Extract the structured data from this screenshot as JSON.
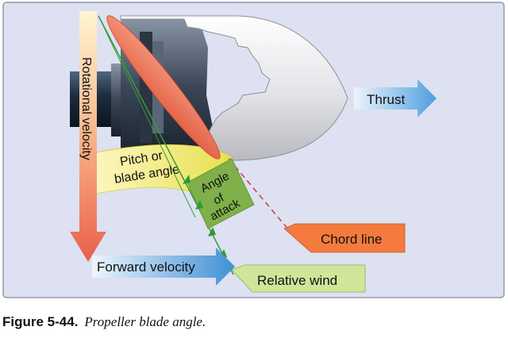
{
  "diagram": {
    "labels": {
      "rotational_velocity": "Rotational velocity",
      "thrust": "Thrust",
      "pitch_line1": "Pitch or",
      "pitch_line2": "blade angle",
      "angle_line1": "Angle",
      "angle_line2": "of",
      "angle_line3": "attack",
      "chord_line": "Chord line",
      "forward_velocity": "Forward velocity",
      "relative_wind": "Relative wind"
    },
    "colors": {
      "panel_bg": "#dde1f2",
      "blade": "#f07a5e",
      "pitch_band": "#eeea70",
      "angle_box": "#7fb04a",
      "chord_box": "#f47a3e",
      "relative_wind_box": "#cfe69a",
      "forward_arrow": "#6ea6dc",
      "thrust_arrow": "#79b3e6",
      "rotational_arrow_top": "#fff3c0",
      "rotational_arrow_bottom": "#ee6f58",
      "shaft": "#1c2b3d",
      "spinner": "#f2f2f4"
    }
  },
  "caption": {
    "figure": "Figure 5-44.",
    "description": "Propeller blade angle."
  }
}
